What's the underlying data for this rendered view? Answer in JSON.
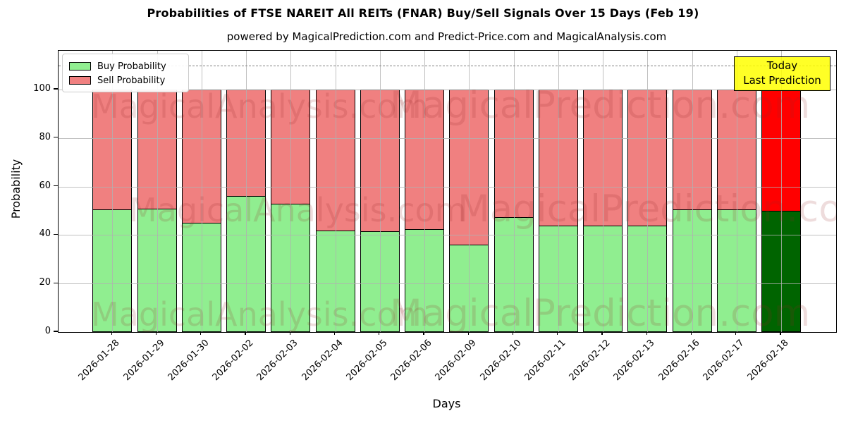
{
  "title": "Probabilities of FTSE NAREIT All REITs (FNAR) Buy/Sell Signals Over 15 Days (Feb 19)",
  "subtitle": "powered by MagicalPrediction.com and Predict-Price.com and MagicalAnalysis.com",
  "axes": {
    "xlabel": "Days",
    "ylabel": "Probability"
  },
  "legend": {
    "items": [
      {
        "label": "Buy Probability",
        "color": "#90EE90"
      },
      {
        "label": "Sell Probability",
        "color": "#F08080"
      }
    ]
  },
  "annotation": {
    "line1": "Today",
    "line2": "Last Prediction",
    "bg_color": "#FFFF00"
  },
  "watermarks": {
    "left_text": "MagicalAnalysis.com",
    "right_text": "MagicalPrediction.com"
  },
  "colors": {
    "buy": "#90EE90",
    "sell": "#F08080",
    "last_buy": "#006400",
    "last_sell": "#FF0000",
    "grid": "#b0b0b0",
    "threshold": "#808080",
    "annotation_bg": "#FFFF00"
  },
  "chart_data": {
    "type": "bar",
    "stacked": true,
    "title": "Probabilities of FTSE NAREIT All REITs (FNAR) Buy/Sell Signals Over 15 Days (Feb 19)",
    "xlabel": "Days",
    "ylabel": "Probability",
    "ylim": [
      0,
      116
    ],
    "yticks": [
      0,
      20,
      40,
      60,
      80,
      100
    ],
    "grid": true,
    "legend_position": "upper left",
    "threshold_line": {
      "y": 110,
      "style": "dashed",
      "color": "#808080"
    },
    "categories": [
      "2026-01-28",
      "2026-01-29",
      "2026-01-30",
      "2026-02-02",
      "2026-02-03",
      "2026-02-04",
      "2026-02-05",
      "2026-02-06",
      "2026-02-09",
      "2026-02-10",
      "2026-02-11",
      "2026-02-12",
      "2026-02-13",
      "2026-02-16",
      "2026-02-17",
      "2026-02-18"
    ],
    "series": [
      {
        "name": "Buy Probability",
        "color": "#90EE90",
        "last_bar_color": "#006400",
        "values": [
          50.5,
          51,
          45,
          56,
          53,
          42,
          41.5,
          42.5,
          36,
          47.5,
          44,
          44,
          44,
          50.5,
          50.5,
          50
        ]
      },
      {
        "name": "Sell Probability",
        "color": "#F08080",
        "last_bar_color": "#FF0000",
        "values": [
          49.5,
          49,
          55,
          44,
          47,
          58,
          58.5,
          57.5,
          64,
          52.5,
          56,
          56,
          56,
          49.5,
          49.5,
          50
        ]
      }
    ]
  }
}
